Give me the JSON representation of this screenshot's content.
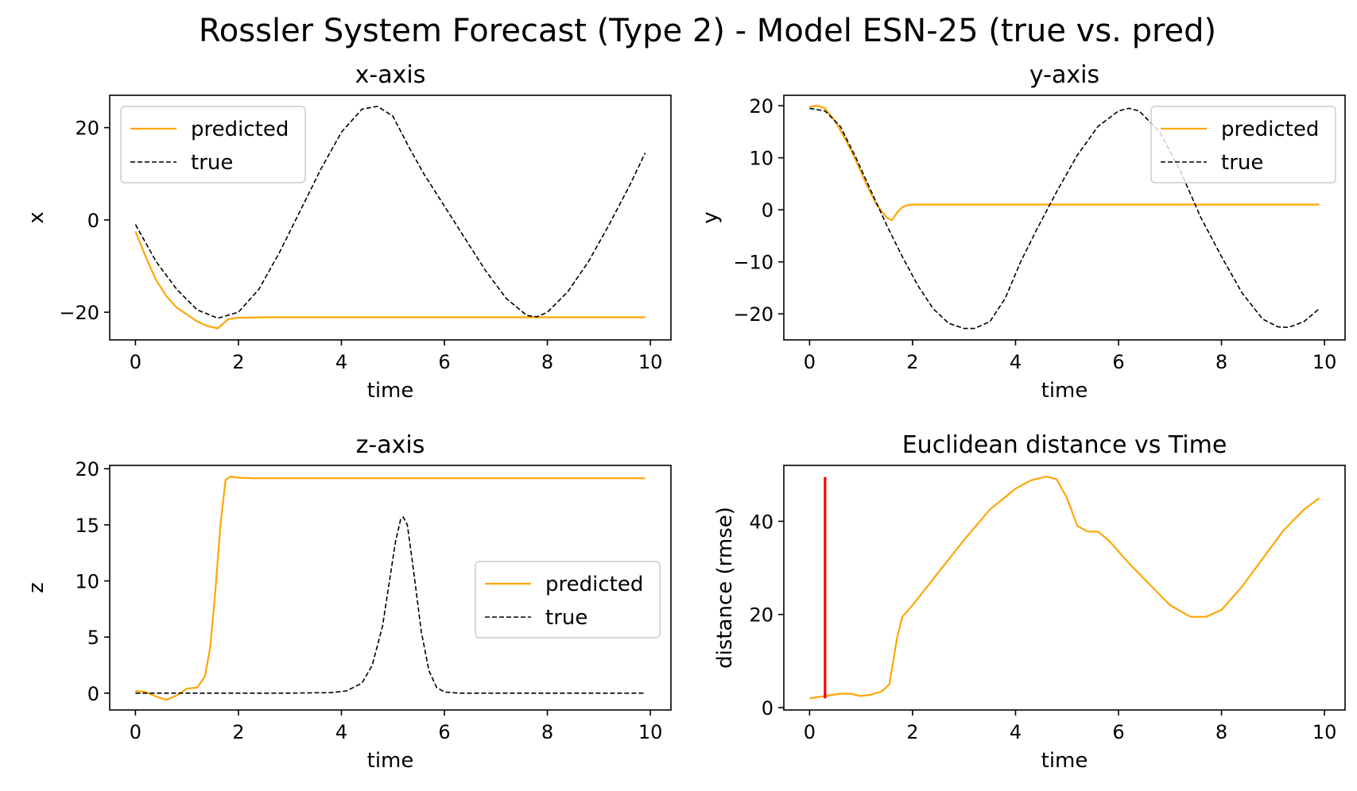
{
  "figure": {
    "suptitle": "Rossler System Forecast (Type 2) - Model ESN-25 (true vs. pred)"
  },
  "colors": {
    "predicted": "#FFA500",
    "true": "#000000",
    "marker": "#FF0000"
  },
  "chart_data": [
    {
      "id": "x",
      "type": "line",
      "title": "x-axis",
      "xlabel": "time",
      "ylabel": "x",
      "xlim": [
        -0.5,
        10.4
      ],
      "ylim": [
        -26,
        27
      ],
      "xticks": [
        0,
        2,
        4,
        6,
        8,
        10
      ],
      "yticks": [
        -20,
        0,
        20
      ],
      "legend": "upper left",
      "series": [
        {
          "name": "predicted",
          "style": "solid",
          "color": "#FFA500",
          "x": [
            0,
            0.2,
            0.4,
            0.6,
            0.8,
            1.0,
            1.2,
            1.4,
            1.6,
            1.8,
            2.0,
            2.5,
            3,
            4,
            5,
            6,
            7,
            8,
            9,
            9.9
          ],
          "y": [
            -2.5,
            -8,
            -13,
            -16.5,
            -19,
            -20.5,
            -22,
            -23,
            -23.5,
            -21.5,
            -21.2,
            -21.1,
            -21.1,
            -21.1,
            -21.1,
            -21.1,
            -21.1,
            -21.1,
            -21.1,
            -21.1
          ]
        },
        {
          "name": "true",
          "style": "dashed",
          "color": "#000000",
          "x": [
            0,
            0.4,
            0.8,
            1.2,
            1.6,
            2.0,
            2.4,
            2.8,
            3.2,
            3.6,
            4.0,
            4.4,
            4.7,
            5.0,
            5.3,
            5.6,
            6.0,
            6.4,
            6.8,
            7.2,
            7.6,
            7.8,
            8.0,
            8.4,
            8.8,
            9.2,
            9.6,
            9.9
          ],
          "y": [
            -1,
            -9,
            -15,
            -19.5,
            -21.3,
            -20,
            -15,
            -7,
            2,
            11,
            19,
            24,
            24.6,
            22.5,
            16,
            10,
            3,
            -4,
            -11,
            -17,
            -20.7,
            -21,
            -20,
            -15.5,
            -9,
            -1,
            7.5,
            14.5
          ]
        }
      ]
    },
    {
      "id": "y",
      "type": "line",
      "title": "y-axis",
      "xlabel": "time",
      "ylabel": "y",
      "xlim": [
        -0.5,
        10.4
      ],
      "ylim": [
        -25,
        22
      ],
      "xticks": [
        0,
        2,
        4,
        6,
        8,
        10
      ],
      "yticks": [
        -20,
        -10,
        0,
        10,
        20
      ],
      "legend": "upper right",
      "series": [
        {
          "name": "predicted",
          "style": "solid",
          "color": "#FFA500",
          "x": [
            0,
            0.15,
            0.3,
            0.5,
            0.7,
            0.9,
            1.1,
            1.3,
            1.5,
            1.6,
            1.7,
            1.8,
            1.9,
            2.0,
            2.2,
            2.5,
            3,
            4,
            5,
            6,
            7,
            8,
            9,
            9.9
          ],
          "y": [
            19.8,
            20,
            19.5,
            17,
            13.5,
            9.5,
            5,
            1,
            -1.5,
            -2,
            -0.5,
            0.5,
            0.9,
            1,
            1,
            1,
            1,
            1,
            1,
            1,
            1,
            1,
            1,
            1
          ]
        },
        {
          "name": "true",
          "style": "dashed",
          "color": "#000000",
          "x": [
            0,
            0.3,
            0.6,
            0.9,
            1.2,
            1.5,
            1.8,
            2.1,
            2.4,
            2.7,
            3.0,
            3.2,
            3.5,
            3.8,
            4.1,
            4.4,
            4.8,
            5.2,
            5.6,
            6.0,
            6.2,
            6.4,
            6.8,
            7.2,
            7.6,
            8.0,
            8.4,
            8.8,
            9.1,
            9.3,
            9.6,
            9.9
          ],
          "y": [
            19.5,
            19,
            16,
            10,
            3.5,
            -3,
            -9,
            -14.5,
            -19,
            -21.8,
            -22.8,
            -22.8,
            -21.5,
            -17,
            -10,
            -4,
            3.5,
            10.5,
            16,
            19,
            19.5,
            19,
            15,
            7.5,
            -1.5,
            -9,
            -16,
            -21,
            -22.5,
            -22.6,
            -21.5,
            -19
          ]
        }
      ]
    },
    {
      "id": "z",
      "type": "line",
      "title": "z-axis",
      "xlabel": "time",
      "ylabel": "z",
      "xlim": [
        -0.5,
        10.4
      ],
      "ylim": [
        -1.5,
        20.3
      ],
      "xticks": [
        0,
        2,
        4,
        6,
        8,
        10
      ],
      "yticks": [
        0,
        5,
        10,
        15,
        20
      ],
      "legend": "center right",
      "series": [
        {
          "name": "predicted",
          "style": "solid",
          "color": "#FFA500",
          "x": [
            0,
            0.2,
            0.4,
            0.6,
            0.8,
            1.0,
            1.2,
            1.35,
            1.45,
            1.55,
            1.65,
            1.75,
            1.85,
            2.0,
            2.3,
            3,
            4,
            5,
            6,
            7,
            8,
            9,
            9.9
          ],
          "y": [
            0.2,
            0.1,
            -0.3,
            -0.6,
            -0.2,
            0.4,
            0.5,
            1.5,
            4,
            9,
            15,
            19,
            19.3,
            19.2,
            19.15,
            19.15,
            19.15,
            19.15,
            19.15,
            19.15,
            19.15,
            19.15,
            19.15
          ]
        },
        {
          "name": "true",
          "style": "dashed",
          "color": "#000000",
          "x": [
            0,
            1,
            2,
            3,
            3.8,
            4.1,
            4.4,
            4.6,
            4.8,
            4.95,
            5.05,
            5.15,
            5.2,
            5.28,
            5.4,
            5.55,
            5.7,
            5.85,
            6.0,
            6.3,
            7,
            8,
            9,
            9.9
          ],
          "y": [
            0,
            0,
            0,
            0,
            0.05,
            0.2,
            0.9,
            2.5,
            6,
            10.5,
            13.5,
            15.5,
            15.7,
            15,
            11,
            5.5,
            2,
            0.5,
            0.1,
            0,
            0,
            0,
            0,
            0
          ]
        }
      ]
    },
    {
      "id": "dist",
      "type": "line",
      "title": "Euclidean distance vs Time",
      "xlabel": "time",
      "ylabel": "distance (rmse)",
      "xlim": [
        -0.5,
        10.4
      ],
      "ylim": [
        -0.5,
        52
      ],
      "xticks": [
        0,
        2,
        4,
        6,
        8,
        10
      ],
      "yticks": [
        0,
        20,
        40
      ],
      "legend": "none",
      "series": [
        {
          "style": "solid",
          "color": "#FFA500",
          "x": [
            0,
            0.3,
            0.6,
            0.8,
            1.0,
            1.2,
            1.4,
            1.55,
            1.7,
            1.8,
            2.0,
            2.5,
            3.0,
            3.5,
            4.0,
            4.3,
            4.6,
            4.8,
            5.0,
            5.2,
            5.4,
            5.6,
            5.8,
            6.2,
            6.6,
            7.0,
            7.4,
            7.7,
            8.0,
            8.4,
            8.8,
            9.2,
            9.6,
            9.9
          ],
          "y": [
            2,
            2.5,
            3,
            3,
            2.5,
            2.8,
            3.5,
            5,
            15,
            19.5,
            22,
            29,
            36,
            42.5,
            47,
            48.8,
            49.6,
            49,
            45,
            39,
            37.8,
            37.8,
            36,
            31,
            26.5,
            22,
            19.5,
            19.5,
            21,
            26,
            32,
            38,
            42.5,
            45
          ]
        }
      ],
      "vline": {
        "x": 0.3,
        "ymin": 2,
        "ymax": 49.5,
        "color": "#FF0000"
      }
    }
  ]
}
